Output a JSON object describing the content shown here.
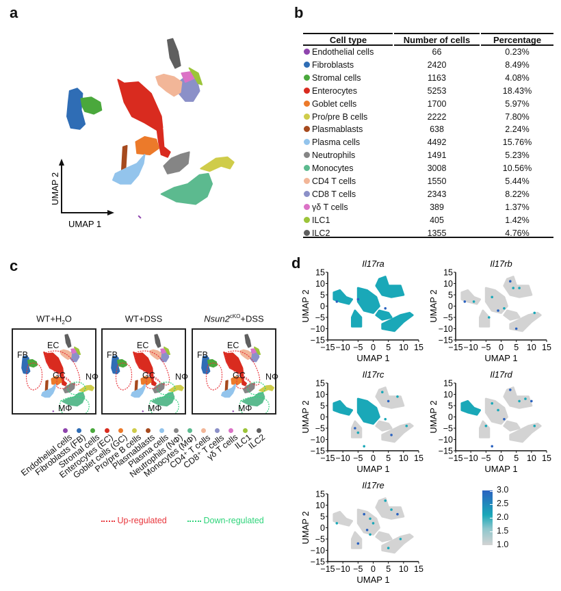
{
  "panels": {
    "a": {
      "letter": "a",
      "axis_x": "UMAP 1",
      "axis_y": "UMAP 2"
    },
    "b": {
      "letter": "b"
    },
    "c": {
      "letter": "c"
    },
    "d": {
      "letter": "d"
    }
  },
  "table": {
    "headers": [
      "Cell type",
      "Number of cells",
      "Percentage"
    ],
    "rows": [
      {
        "cell_type": "Endothelial cells",
        "count": "66",
        "pct": "0.23%",
        "color": "#8e44ad"
      },
      {
        "cell_type": "Fibroblasts",
        "count": "2420",
        "pct": "8.49%",
        "color": "#2f6db5"
      },
      {
        "cell_type": "Stromal cells",
        "count": "1163",
        "pct": "4.08%",
        "color": "#4aa83c"
      },
      {
        "cell_type": "Enterocytes",
        "count": "5253",
        "pct": "18.43%",
        "color": "#d92b1f"
      },
      {
        "cell_type": "Goblet cells",
        "count": "1700",
        "pct": "5.97%",
        "color": "#ec7a2a"
      },
      {
        "cell_type": "Pro/pre B cells",
        "count": "2222",
        "pct": "7.80%",
        "color": "#cfcc4a"
      },
      {
        "cell_type": "Plasmablasts",
        "count": "638",
        "pct": "2.24%",
        "color": "#a64a1e"
      },
      {
        "cell_type": "Plasma cells",
        "count": "4492",
        "pct": "15.76%",
        "color": "#93c4ec"
      },
      {
        "cell_type": "Neutrophils",
        "count": "1491",
        "pct": "5.23%",
        "color": "#858585"
      },
      {
        "cell_type": "Monocytes",
        "count": "3008",
        "pct": "10.56%",
        "color": "#5cba8f"
      },
      {
        "cell_type": "CD4 T cells",
        "count": "1550",
        "pct": "5.44%",
        "color": "#f2b698"
      },
      {
        "cell_type": "CD8 T cells",
        "count": "2343",
        "pct": "8.22%",
        "color": "#8b90c8"
      },
      {
        "cell_type": "γδ T cells",
        "count": "389",
        "pct": "1.37%",
        "color": "#db72c6"
      },
      {
        "cell_type": "ILC1",
        "count": "405",
        "pct": "1.42%",
        "color": "#9cc43a"
      },
      {
        "cell_type": "ILC2",
        "count": "1355",
        "pct": "4.76%",
        "color": "#5f5f5f"
      }
    ]
  },
  "conditions": [
    {
      "title_main": "WT+H",
      "title_sub": "2",
      "title_end": "O",
      "italic_prefix": "",
      "sup": ""
    },
    {
      "title_main": "WT+DSS",
      "title_sub": "",
      "title_end": "",
      "italic_prefix": "",
      "sup": ""
    },
    {
      "title_main": "+DSS",
      "title_sub": "",
      "title_end": "",
      "italic_prefix": "Nsun2",
      "sup": "cKO"
    }
  ],
  "cluster_labels": {
    "fb": "FB",
    "ec": "EC",
    "gc": "GC",
    "nphi": "NΦ",
    "mphi": "MΦ"
  },
  "legend_c": {
    "items": [
      {
        "label": "Endothelial cells",
        "color": "#8e44ad"
      },
      {
        "label": "Fibroblasts (FB)",
        "color": "#2f6db5"
      },
      {
        "label": "Stromal cells",
        "color": "#4aa83c"
      },
      {
        "label": "Enterocytes (EC)",
        "color": "#d92b1f"
      },
      {
        "label": "Goblet cells (GC)",
        "color": "#ec7a2a"
      },
      {
        "label": "Pro/pre B cells",
        "color": "#cfcc4a"
      },
      {
        "label": "Plasmablasts",
        "color": "#a64a1e"
      },
      {
        "label": "Plasma cells",
        "color": "#93c4ec"
      },
      {
        "label": "Neutrophils (NΦ)",
        "color": "#858585"
      },
      {
        "label": "Monocytes (MΦ)",
        "color": "#5cba8f"
      },
      {
        "label": "CD4⁺ T cells",
        "color": "#f2b698"
      },
      {
        "label": "CD8⁺ T cells",
        "color": "#8b90c8"
      },
      {
        "label": "γδ T cells",
        "color": "#db72c6"
      },
      {
        "label": "ILC1",
        "color": "#9cc43a"
      },
      {
        "label": "ILC2",
        "color": "#5f5f5f"
      }
    ],
    "up_label": "Up-regulated",
    "down_label": "Down-regulated",
    "up_color": "#e8343a",
    "down_color": "#2ed47a"
  },
  "chart_data": [
    {
      "type": "scatter",
      "title": "Gene expression UMAP",
      "genes": [
        "Il17ra",
        "Il17rb",
        "Il17rc",
        "Il17rd",
        "Il17re"
      ],
      "xlabel": "UMAP 1",
      "ylabel": "UMAP 2",
      "xlim": [
        -15,
        15
      ],
      "ylim": [
        -15,
        15
      ],
      "xticks": [
        "−15",
        "−10",
        "−5",
        "0",
        "5",
        "10",
        "15"
      ],
      "yticks": [
        "15",
        "10",
        "5",
        "0",
        "−5",
        "−10",
        "−15"
      ],
      "colorbar": {
        "min": 1.0,
        "max": 3.0,
        "ticks": [
          "3.0",
          "2.5",
          "2.0",
          "1.5",
          "1.0"
        ],
        "colors": [
          "#d3d3d3",
          "#1aa8b8",
          "#2a62c0"
        ]
      },
      "base_color": "#d3d3d3",
      "high_color": "#1aa8b8",
      "max_color": "#2a62c0"
    }
  ]
}
